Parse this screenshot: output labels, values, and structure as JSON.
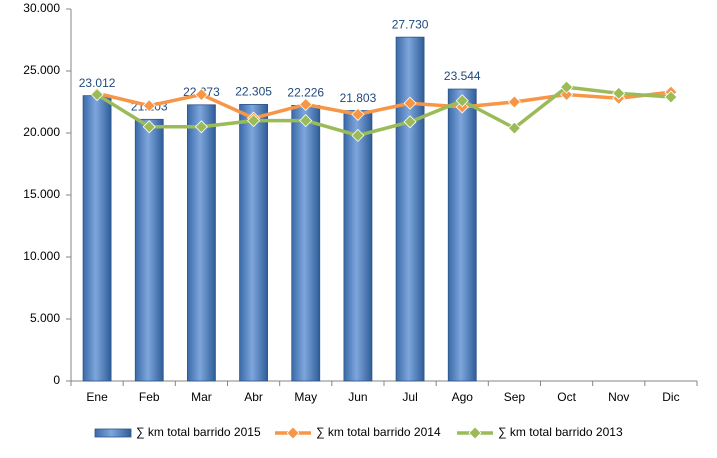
{
  "chart_data": {
    "type": "bar",
    "categories": [
      "Ene",
      "Feb",
      "Mar",
      "Abr",
      "May",
      "Jun",
      "Jul",
      "Ago",
      "Sep",
      "Oct",
      "Nov",
      "Dic"
    ],
    "series": [
      {
        "name": "∑ km total barrido 2015",
        "type": "bar",
        "color": "#4f81bd",
        "values": [
          23012,
          21103,
          22273,
          22305,
          22226,
          21803,
          27730,
          23544,
          null,
          null,
          null,
          null
        ],
        "value_labels": [
          "23.012",
          "21.103",
          "22.273",
          "22.305",
          "22.226",
          "21.803",
          "27.730",
          "23.544",
          null,
          null,
          null,
          null
        ]
      },
      {
        "name": "∑ km total barrido 2014",
        "type": "line",
        "color": "#f79646",
        "values": [
          23200,
          22200,
          23100,
          21200,
          22300,
          21500,
          22400,
          22100,
          22500,
          23100,
          22800,
          23300
        ]
      },
      {
        "name": "∑ km total barrido 2013",
        "type": "line",
        "color": "#9bbb59",
        "values": [
          23100,
          20500,
          20500,
          21000,
          21000,
          19800,
          20900,
          22600,
          20400,
          23700,
          23200,
          22900
        ]
      }
    ],
    "ylim": [
      0,
      30000
    ],
    "yticks": [
      0,
      {
        "value": 5000,
        "label": "5.000"
      },
      {
        "value": 10000,
        "label": "10.000"
      },
      {
        "value": 15000,
        "label": "15.000"
      },
      {
        "value": 20000,
        "label": "20.000"
      },
      {
        "value": 25000,
        "label": "25.000"
      },
      {
        "value": 30000,
        "label": "30.000"
      }
    ],
    "grid": false,
    "legend": "bottom"
  }
}
